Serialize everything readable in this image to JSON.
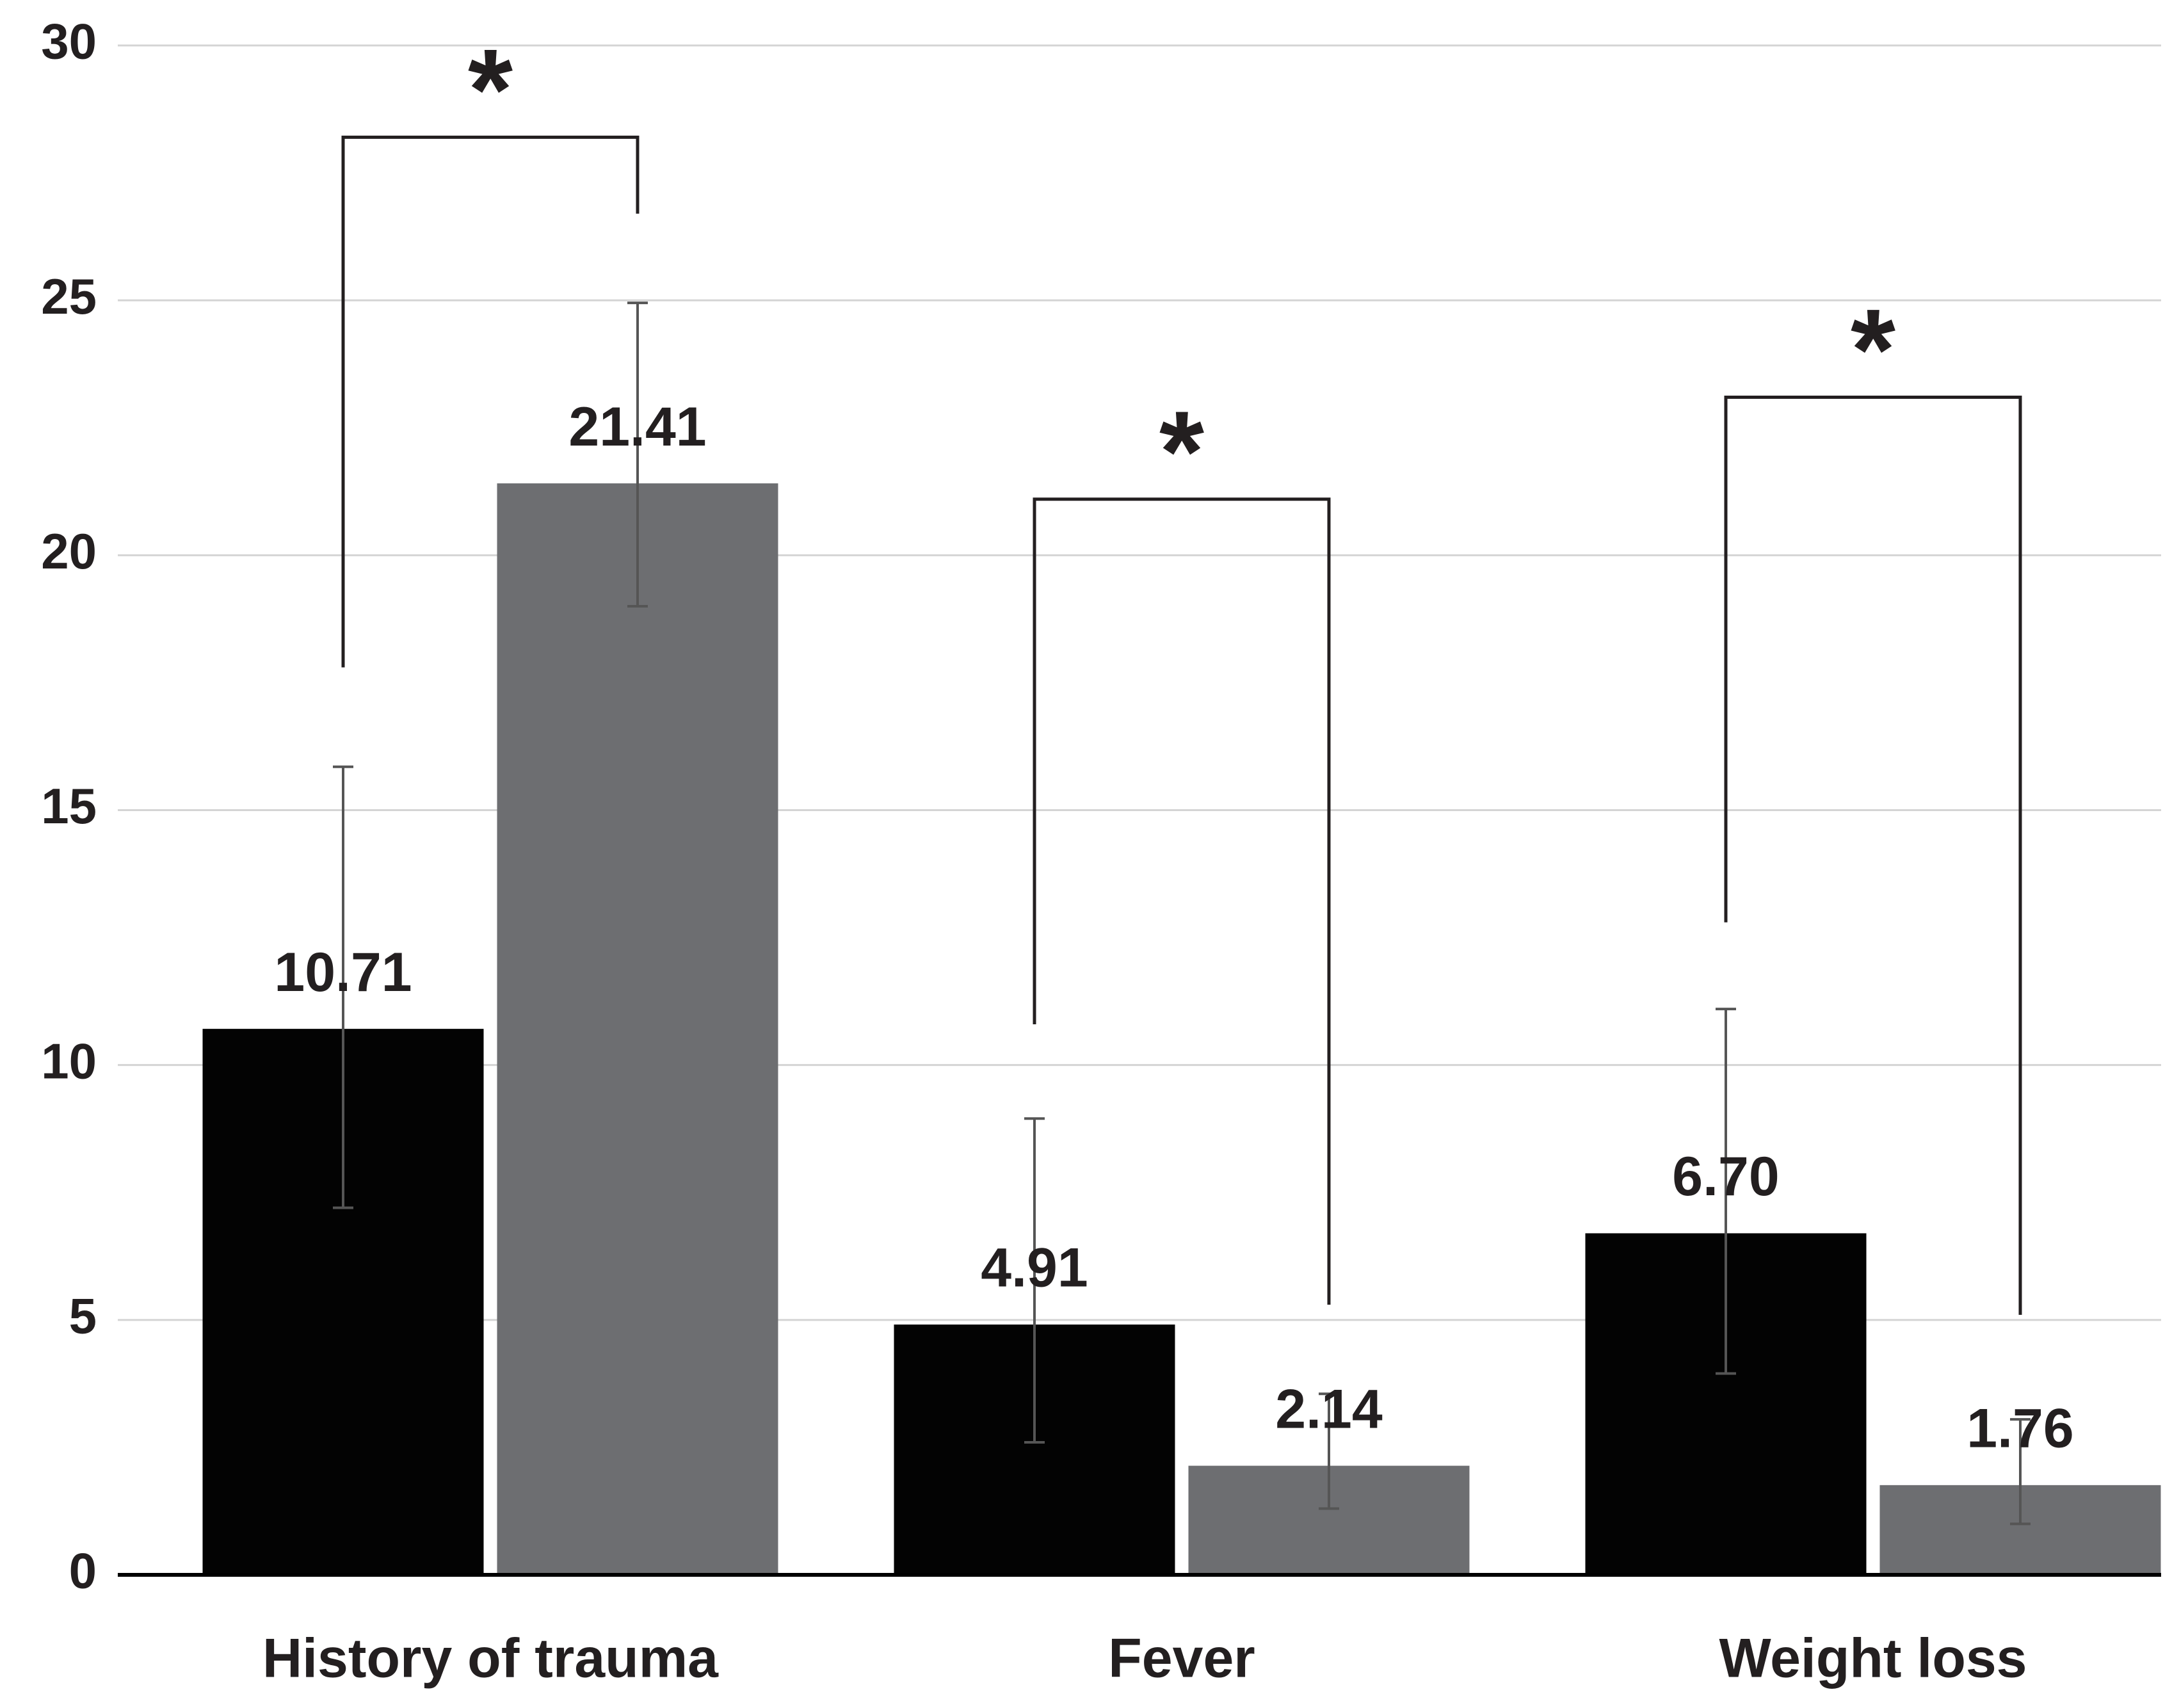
{
  "chart_data": {
    "type": "bar",
    "categories": [
      "History of trauma",
      "Fever",
      "Weight loss"
    ],
    "series": [
      {
        "color": "#030303",
        "values": [
          10.71,
          4.91,
          6.7
        ],
        "value_labels": [
          "10.71",
          "4.91",
          "6.70"
        ],
        "error_low": [
          3.51,
          2.31,
          2.75
        ],
        "error_high": [
          5.14,
          4.04,
          4.4
        ]
      },
      {
        "color": "#6d6e71",
        "values": [
          21.41,
          2.14,
          1.76
        ],
        "value_labels": [
          "21.41",
          "2.14",
          "1.76"
        ],
        "error_low": [
          2.41,
          0.84,
          0.76
        ],
        "error_high": [
          3.54,
          1.41,
          1.29
        ]
      }
    ],
    "ylim": [
      0,
      30
    ],
    "yticks": [
      0,
      5,
      10,
      15,
      20,
      25,
      30
    ],
    "grid": true,
    "annotations": [
      {
        "text": "*",
        "category": 0,
        "y": 28.2,
        "left_end": 17.8,
        "right_end": 26.7
      },
      {
        "text": "*",
        "category": 1,
        "y": 21.1,
        "left_end": 10.8,
        "right_end": 5.3
      },
      {
        "text": "*",
        "category": 2,
        "y": 23.1,
        "left_end": 12.8,
        "right_end": 5.1
      }
    ]
  }
}
